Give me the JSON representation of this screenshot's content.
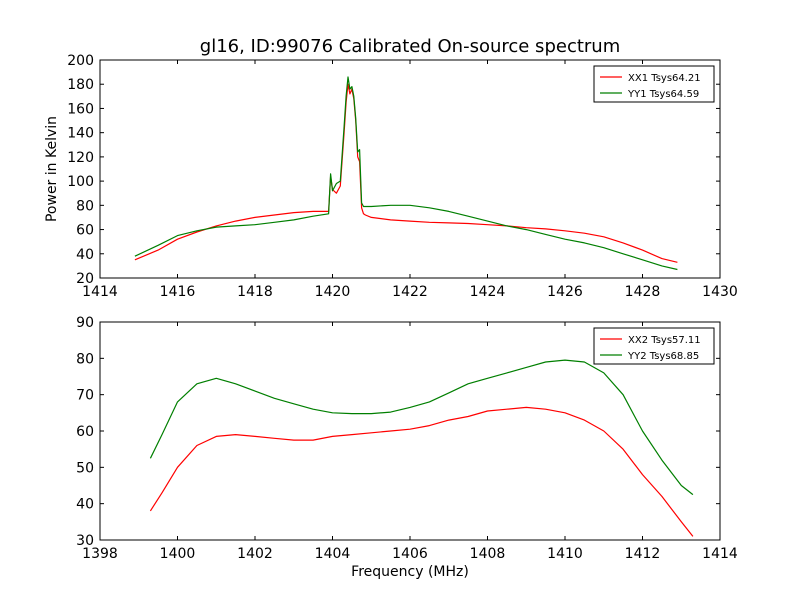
{
  "figure": {
    "title": "gl16, ID:99076 Calibrated On-source spectrum"
  },
  "colors": {
    "xx": "#ff0000",
    "yy": "#007f00"
  },
  "chart_data": [
    {
      "type": "line",
      "title": "gl16, ID:99076 Calibrated On-source spectrum",
      "xlabel": "",
      "ylabel": "Power in Kelvin",
      "xlim": [
        1414,
        1430
      ],
      "ylim": [
        20,
        200
      ],
      "xticks": [
        1414,
        1416,
        1418,
        1420,
        1422,
        1424,
        1426,
        1428,
        1430
      ],
      "yticks": [
        20,
        40,
        60,
        80,
        100,
        120,
        140,
        160,
        180,
        200
      ],
      "grid": false,
      "legend_position": "top-right",
      "series": [
        {
          "name": "XX1 Tsys64.21",
          "color": "#ff0000",
          "x": [
            1414.9,
            1415.5,
            1416.0,
            1416.5,
            1417.0,
            1417.5,
            1418.0,
            1418.5,
            1419.0,
            1419.5,
            1419.9,
            1419.95,
            1420.0,
            1420.1,
            1420.2,
            1420.3,
            1420.35,
            1420.4,
            1420.45,
            1420.5,
            1420.55,
            1420.6,
            1420.65,
            1420.7,
            1420.75,
            1420.8,
            1420.85,
            1421.0,
            1421.5,
            1422.0,
            1422.5,
            1423.0,
            1423.5,
            1424.0,
            1424.5,
            1425.0,
            1425.5,
            1426.0,
            1426.5,
            1427.0,
            1427.5,
            1428.0,
            1428.5,
            1428.9
          ],
          "y": [
            35,
            43,
            52,
            58,
            63,
            67,
            70,
            72,
            74,
            75,
            75,
            104,
            93,
            90,
            96,
            140,
            165,
            180,
            172,
            176,
            168,
            150,
            120,
            116,
            78,
            73,
            72,
            70,
            68,
            67,
            66,
            65.5,
            65,
            64,
            63,
            61.5,
            60.5,
            59,
            57,
            54,
            49,
            43,
            36,
            33
          ]
        },
        {
          "name": "YY1 Tsys64.59",
          "color": "#007f00",
          "x": [
            1414.9,
            1415.5,
            1416.0,
            1416.5,
            1417.0,
            1417.5,
            1418.0,
            1418.5,
            1419.0,
            1419.5,
            1419.9,
            1419.95,
            1420.0,
            1420.1,
            1420.2,
            1420.3,
            1420.35,
            1420.4,
            1420.45,
            1420.5,
            1420.55,
            1420.6,
            1420.65,
            1420.7,
            1420.75,
            1420.8,
            1420.85,
            1421.0,
            1421.5,
            1422.0,
            1422.5,
            1423.0,
            1423.5,
            1424.0,
            1424.5,
            1425.0,
            1425.5,
            1426.0,
            1426.5,
            1427.0,
            1427.5,
            1428.0,
            1428.5,
            1428.9
          ],
          "y": [
            38,
            47,
            55,
            59,
            62,
            63,
            64,
            66,
            68,
            71,
            73,
            106,
            92,
            98,
            100,
            145,
            170,
            186,
            176,
            178,
            170,
            152,
            124,
            126,
            82,
            79,
            79,
            79,
            80,
            80,
            78,
            75,
            71,
            67,
            63,
            60,
            56,
            52,
            49,
            45,
            40,
            35,
            30,
            27
          ]
        }
      ]
    },
    {
      "type": "line",
      "title": "",
      "xlabel": "Frequency (MHz)",
      "ylabel": "",
      "xlim": [
        1398,
        1414
      ],
      "ylim": [
        30,
        90
      ],
      "xticks": [
        1398,
        1400,
        1402,
        1404,
        1406,
        1408,
        1410,
        1412,
        1414
      ],
      "yticks": [
        30,
        40,
        50,
        60,
        70,
        80,
        90
      ],
      "grid": false,
      "legend_position": "top-right",
      "series": [
        {
          "name": "XX2 Tsys57.11",
          "color": "#ff0000",
          "x": [
            1399.3,
            1399.6,
            1400.0,
            1400.5,
            1401.0,
            1401.5,
            1402.0,
            1402.5,
            1403.0,
            1403.5,
            1404.0,
            1404.5,
            1405.0,
            1405.5,
            1406.0,
            1406.5,
            1407.0,
            1407.5,
            1408.0,
            1408.5,
            1409.0,
            1409.5,
            1410.0,
            1410.5,
            1411.0,
            1411.5,
            1412.0,
            1412.5,
            1413.0,
            1413.3
          ],
          "y": [
            38,
            43,
            50,
            56,
            58.5,
            59,
            58.5,
            58,
            57.5,
            57.5,
            58.5,
            59,
            59.5,
            60,
            60.5,
            61.5,
            63,
            64,
            65.5,
            66,
            66.5,
            66,
            65,
            63,
            60,
            55,
            48,
            42,
            35,
            31
          ]
        },
        {
          "name": "YY2 Tsys68.85",
          "color": "#007f00",
          "x": [
            1399.3,
            1399.6,
            1400.0,
            1400.5,
            1401.0,
            1401.5,
            1402.0,
            1402.5,
            1403.0,
            1403.5,
            1404.0,
            1404.5,
            1405.0,
            1405.5,
            1406.0,
            1406.5,
            1407.0,
            1407.5,
            1408.0,
            1408.5,
            1409.0,
            1409.5,
            1410.0,
            1410.5,
            1411.0,
            1411.5,
            1412.0,
            1412.5,
            1413.0,
            1413.3
          ],
          "y": [
            52.5,
            59,
            68,
            73,
            74.5,
            73,
            71,
            69,
            67.5,
            66,
            65,
            64.8,
            64.8,
            65.2,
            66.5,
            68,
            70.5,
            73,
            74.5,
            76,
            77.5,
            79,
            79.5,
            79,
            76,
            70,
            60,
            52,
            45,
            42.5
          ]
        }
      ]
    }
  ]
}
